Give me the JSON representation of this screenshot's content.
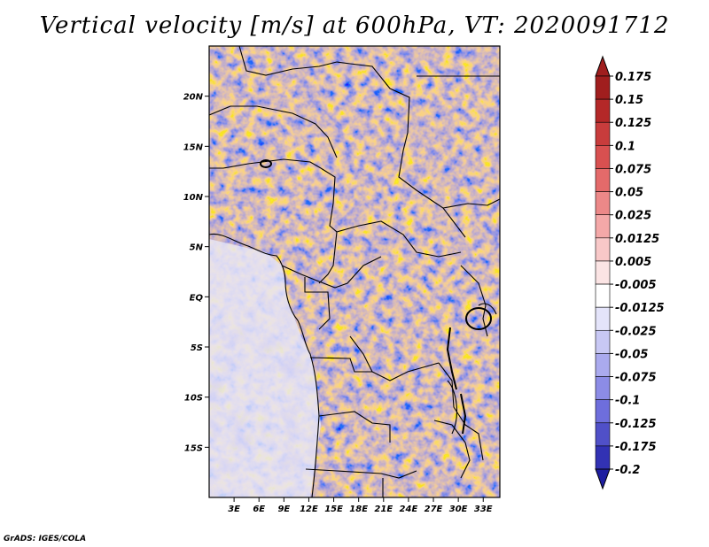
{
  "title": "Vertical velocity [m/s] at 600hPa, VT: 2020091712",
  "credit": "GrADS: IGES/COLA",
  "map": {
    "lon_range": [
      0,
      35
    ],
    "lat_range": [
      -20,
      25
    ],
    "lat_ticks": [
      {
        "lat": 20,
        "label": "20N"
      },
      {
        "lat": 15,
        "label": "15N"
      },
      {
        "lat": 10,
        "label": "10N"
      },
      {
        "lat": 5,
        "label": "5N"
      },
      {
        "lat": 0,
        "label": "EQ"
      },
      {
        "lat": -5,
        "label": "5S"
      },
      {
        "lat": -10,
        "label": "10S"
      },
      {
        "lat": -15,
        "label": "15S"
      }
    ],
    "lon_ticks": [
      {
        "lon": 3,
        "label": "3E"
      },
      {
        "lon": 6,
        "label": "6E"
      },
      {
        "lon": 9,
        "label": "9E"
      },
      {
        "lon": 12,
        "label": "12E"
      },
      {
        "lon": 15,
        "label": "15E"
      },
      {
        "lon": 18,
        "label": "18E"
      },
      {
        "lon": 21,
        "label": "21E"
      },
      {
        "lon": 24,
        "label": "24E"
      },
      {
        "lon": 27,
        "label": "27E"
      },
      {
        "lon": 30,
        "label": "30E"
      },
      {
        "lon": 33,
        "label": "33E"
      }
    ]
  },
  "colorbar": {
    "levels": [
      {
        "label": "0.175",
        "color": "#a01e1e"
      },
      {
        "label": "0.15",
        "color": "#b42828"
      },
      {
        "label": "0.125",
        "color": "#c83c3c"
      },
      {
        "label": "0.1",
        "color": "#d85050"
      },
      {
        "label": "0.075",
        "color": "#e46a6a"
      },
      {
        "label": "0.05",
        "color": "#ec8888"
      },
      {
        "label": "0.025",
        "color": "#f4a8a8"
      },
      {
        "label": "0.0125",
        "color": "#f8c8c8"
      },
      {
        "label": "0.005",
        "color": "#fbe4e4"
      },
      {
        "label": "-0.005",
        "color": "#ffffff"
      },
      {
        "label": "-0.0125",
        "color": "#e4e4fa"
      },
      {
        "label": "-0.025",
        "color": "#c8c8f4"
      },
      {
        "label": "-0.05",
        "color": "#aaaaee"
      },
      {
        "label": "-0.075",
        "color": "#8c8ce6"
      },
      {
        "label": "-0.1",
        "color": "#6e6edc"
      },
      {
        "label": "-0.125",
        "color": "#5050c8"
      },
      {
        "label": "-0.175",
        "color": "#3232b4"
      },
      {
        "label": "-0.2",
        "color": "#1e1ea0"
      }
    ],
    "top_color": "#a01e1e",
    "bottom_color": "#1e1ea0"
  }
}
